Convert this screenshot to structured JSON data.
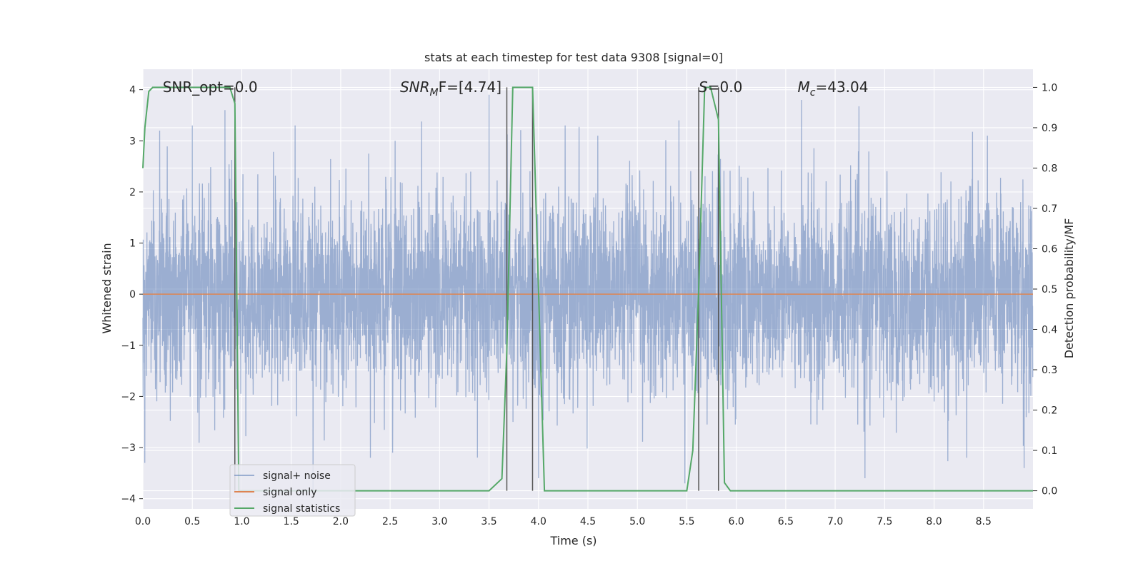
{
  "chart_data": {
    "type": "line",
    "title": "stats at each timestep for test data 9308 [signal=0]",
    "xlabel": "Time (s)",
    "ylabel": "Whitened strain",
    "y2label": "Detection probability/MF",
    "xlim": [
      0.0,
      9.0
    ],
    "ylim": [
      -4.2,
      4.4
    ],
    "y2lim": [
      -0.045,
      1.045
    ],
    "xticks": [
      "0.0",
      "0.5",
      "1.0",
      "1.5",
      "2.0",
      "2.5",
      "3.0",
      "3.5",
      "4.0",
      "4.5",
      "5.0",
      "5.5",
      "6.0",
      "6.5",
      "7.0",
      "7.5",
      "8.0",
      "8.5"
    ],
    "yticks": [
      "4",
      "3",
      "2",
      "1",
      "0",
      "−1",
      "−2",
      "−3",
      "−4"
    ],
    "y2ticks": [
      "1.0",
      "0.9",
      "0.8",
      "0.7",
      "0.6",
      "0.5",
      "0.4",
      "0.3",
      "0.2",
      "0.1",
      "0.0"
    ],
    "grid": true,
    "legend_position": "lower-left",
    "annotations": [
      {
        "text": "SNR_opt=0.0",
        "x": 0.2,
        "y": 4.05
      },
      {
        "text_main": "SNR",
        "text_sub": "M",
        "text_rest": "F=[4.74]",
        "x": 2.6,
        "y": 4.05
      },
      {
        "text_main": "S",
        "text_rest": "=0.0",
        "x": 5.62,
        "y": 4.05
      },
      {
        "text_main": "M",
        "text_sub": "c",
        "text_rest": "=43.04",
        "x": 6.62,
        "y": 4.05
      }
    ],
    "series": [
      {
        "name": "signal+ noise",
        "color": "#4c72b0",
        "alpha": 0.5,
        "description": "whitened noise, roughly ±1.5 with spikes to ±3.9",
        "sample_rate_hz": 512,
        "amplitude_envelope": 1.55,
        "peaks": [
          {
            "x": 0.02,
            "y": 3.9
          },
          {
            "x": 0.17,
            "y": 3.2
          },
          {
            "x": 0.5,
            "y": 3.3
          },
          {
            "x": 0.83,
            "y": 3.6
          },
          {
            "x": 1.54,
            "y": 3.3
          },
          {
            "x": 2.55,
            "y": 3.0
          },
          {
            "x": 3.5,
            "y": 3.9
          },
          {
            "x": 4.27,
            "y": 3.3
          },
          {
            "x": 4.6,
            "y": 3.1
          },
          {
            "x": 5.42,
            "y": 3.4
          },
          {
            "x": 6.66,
            "y": 3.8
          },
          {
            "x": 8.54,
            "y": 3.1
          },
          {
            "x": 0.02,
            "y": -3.3
          },
          {
            "x": 1.72,
            "y": -3.9
          },
          {
            "x": 2.3,
            "y": -3.2
          },
          {
            "x": 4.0,
            "y": -3.6
          },
          {
            "x": 5.48,
            "y": -3.7
          },
          {
            "x": 7.3,
            "y": -3.6
          },
          {
            "x": 8.33,
            "y": -3.2
          },
          {
            "x": 8.91,
            "y": -3.4
          }
        ]
      },
      {
        "name": "signal only",
        "color": "#dd8452",
        "x": [
          0.0,
          9.0
        ],
        "y": [
          0.0,
          0.0
        ]
      },
      {
        "name": "signal statistics",
        "color": "#55a868",
        "axis": "right",
        "x": [
          0.0,
          0.02,
          0.06,
          0.1,
          0.2,
          0.4,
          0.6,
          0.8,
          0.88,
          0.93,
          0.97,
          1.0,
          1.2,
          1.6,
          2.0,
          2.5,
          3.0,
          3.5,
          3.63,
          3.68,
          3.74,
          3.94,
          4.06,
          4.5,
          5.0,
          5.5,
          5.56,
          5.62,
          5.68,
          5.74,
          5.82,
          5.88,
          5.94,
          6.5,
          7.0,
          7.5,
          8.0,
          8.5,
          9.0
        ],
        "y": [
          0.8,
          0.9,
          0.99,
          1.0,
          1.0,
          1.0,
          1.0,
          1.0,
          1.0,
          0.96,
          0.0,
          0.0,
          0.0,
          0.0,
          0.0,
          0.0,
          0.0,
          0.0,
          0.03,
          0.35,
          1.0,
          1.0,
          0.0,
          0.0,
          0.0,
          0.0,
          0.1,
          0.5,
          1.0,
          1.0,
          0.92,
          0.02,
          0.0,
          0.0,
          0.0,
          0.0,
          0.0,
          0.0,
          0.0
        ]
      }
    ],
    "vlines": [
      0.93,
      3.68,
      3.94,
      5.62,
      5.82
    ],
    "vline_color": "#555555",
    "vline_ymax": 1.0
  }
}
